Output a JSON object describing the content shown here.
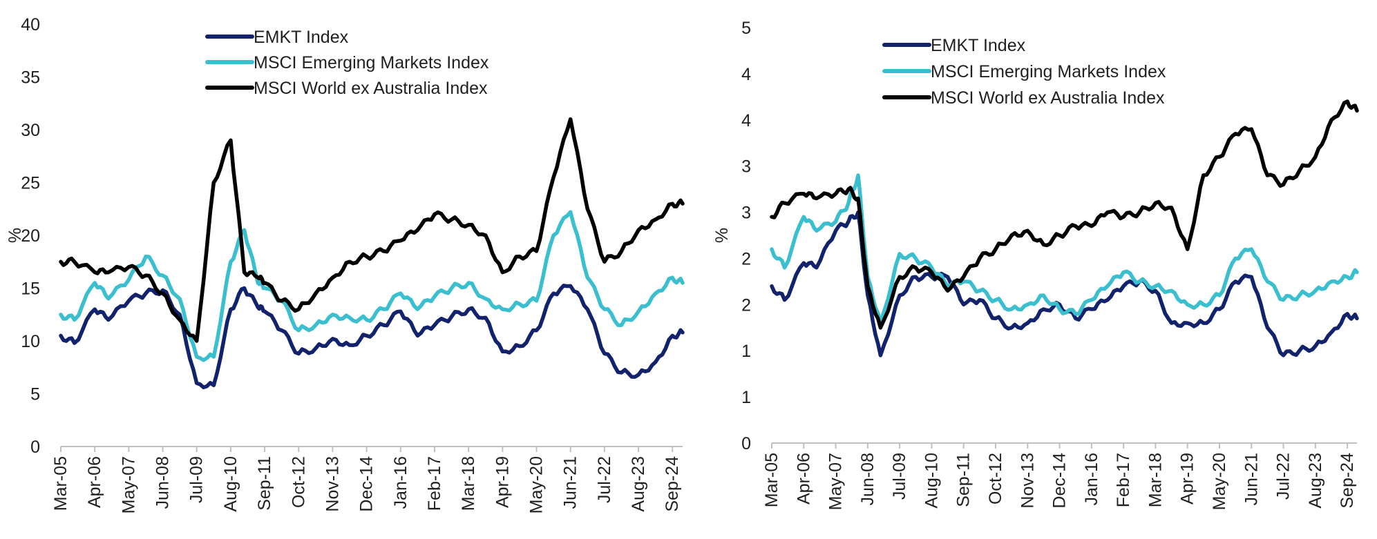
{
  "chart_data": [
    {
      "type": "line",
      "title": "",
      "xlabel": "",
      "ylabel": "%",
      "ylim": [
        0,
        40
      ],
      "yticks": [
        "0",
        "5",
        "10",
        "15",
        "20",
        "25",
        "30",
        "35",
        "40"
      ],
      "categories": [
        "Mar-05",
        "Apr-06",
        "May-07",
        "Jun-08",
        "Jul-09",
        "Aug-10",
        "Sep-11",
        "Oct-12",
        "Nov-13",
        "Dec-14",
        "Jan-16",
        "Feb-17",
        "Mar-18",
        "Apr-19",
        "May-20",
        "Jun-21",
        "Jul-22",
        "Aug-23",
        "Sep-24"
      ],
      "legend": [
        "EMKT Index",
        "MSCI Emerging Markets Index",
        "MSCI World ex Australia Index"
      ],
      "colors": [
        "#12226b",
        "#3bbfcf",
        "#000000"
      ],
      "series": [
        {
          "name": "EMKT Index",
          "x": [
            0,
            0.4,
            1,
            1.4,
            2,
            2.5,
            3,
            3.5,
            4,
            4.5,
            5,
            5.4,
            5.8,
            6,
            6.5,
            7,
            7.5,
            8,
            8.5,
            9,
            9.5,
            10,
            10.5,
            11,
            11.5,
            12,
            12.5,
            13,
            13.5,
            14,
            14.5,
            15,
            15.5,
            16,
            16.5,
            17,
            17.5,
            18,
            18.3
          ],
          "values": [
            10.5,
            9.8,
            13,
            12,
            13.8,
            14.5,
            14.8,
            12.5,
            6,
            5.8,
            13,
            15,
            13.2,
            12.8,
            11,
            8.8,
            9.3,
            10.2,
            9.6,
            10.5,
            11.5,
            12.8,
            10.5,
            11.5,
            12.3,
            13,
            12.2,
            9,
            9.5,
            11,
            14.5,
            15.2,
            13,
            8.8,
            7,
            6.8,
            8,
            10.5,
            10.8
          ]
        },
        {
          "name": "MSCI Emerging Markets Index",
          "x": [
            0,
            0.4,
            1,
            1.4,
            2,
            2.5,
            3,
            3.5,
            4,
            4.5,
            5,
            5.4,
            5.8,
            6,
            6.5,
            7,
            7.5,
            8,
            8.5,
            9,
            9.5,
            10,
            10.5,
            11,
            11.5,
            12,
            12.5,
            13,
            13.5,
            14,
            14.5,
            15,
            15.5,
            16,
            16.5,
            17,
            17.5,
            18,
            18.3
          ],
          "values": [
            12.5,
            12,
            15.5,
            14,
            15.8,
            18,
            16.2,
            14,
            8.5,
            8.5,
            17.5,
            20.5,
            15.5,
            15,
            13.8,
            11,
            11.5,
            12.5,
            12.2,
            12,
            13,
            14.5,
            13,
            14.2,
            15,
            15.5,
            14,
            13,
            13.5,
            13.8,
            20,
            22.2,
            16,
            13,
            11.5,
            12.8,
            14.5,
            16,
            15.5
          ]
        },
        {
          "name": "MSCI World ex Australia Index",
          "x": [
            0,
            0.4,
            1,
            1.4,
            2,
            2.5,
            3,
            3.5,
            4,
            4.5,
            5,
            5.4,
            5.8,
            6,
            6.5,
            7,
            7.5,
            8,
            8.5,
            9,
            9.5,
            10,
            10.5,
            11,
            11.5,
            12,
            12.5,
            13,
            13.5,
            14,
            14.5,
            15,
            15.5,
            16,
            16.5,
            17,
            17.5,
            18,
            18.3
          ],
          "values": [
            17.5,
            17.5,
            16.5,
            16.5,
            17,
            16.2,
            14.5,
            12,
            10,
            25,
            29,
            16.5,
            16,
            15.5,
            13.8,
            13,
            14.5,
            16,
            17.5,
            18,
            18.5,
            19.5,
            20.5,
            22,
            21.5,
            21,
            20,
            16.5,
            18,
            18.5,
            25.5,
            31,
            22.5,
            17.5,
            18.5,
            20.5,
            21.5,
            23,
            23
          ]
        }
      ]
    },
    {
      "type": "line",
      "title": "",
      "xlabel": "",
      "ylabel": "%",
      "ylim": [
        0,
        4.5
      ],
      "yticks": [
        "0",
        "1",
        "1",
        "2",
        "2",
        "3",
        "3",
        "4",
        "4",
        "5"
      ],
      "categories": [
        "Mar-05",
        "Apr-06",
        "May-07",
        "Jun-08",
        "Jul-09",
        "Aug-10",
        "Sep-11",
        "Oct-12",
        "Nov-13",
        "Dec-14",
        "Jan-16",
        "Feb-17",
        "Mar-18",
        "Apr-19",
        "May-20",
        "Jun-21",
        "Jul-22",
        "Aug-23",
        "Sep-24"
      ],
      "legend": [
        "EMKT Index",
        "MSCI Emerging Markets Index",
        "MSCI World ex Australia Index"
      ],
      "colors": [
        "#12226b",
        "#3bbfcf",
        "#000000"
      ],
      "series": [
        {
          "name": "EMKT Index",
          "x": [
            0,
            0.4,
            1,
            1.4,
            2,
            2.4,
            2.7,
            3,
            3.4,
            4,
            4.5,
            5,
            5.5,
            6,
            6.5,
            7,
            7.5,
            8,
            8.5,
            9,
            9.5,
            10,
            10.5,
            11,
            11.5,
            12,
            12.5,
            13,
            13.5,
            14,
            14.5,
            15,
            15.5,
            16,
            16.5,
            17,
            17.5,
            18,
            18.3
          ],
          "values": [
            1.7,
            1.55,
            1.95,
            1.9,
            2.3,
            2.4,
            2.5,
            1.6,
            0.95,
            1.6,
            1.8,
            1.8,
            1.8,
            1.5,
            1.55,
            1.35,
            1.25,
            1.3,
            1.45,
            1.5,
            1.35,
            1.45,
            1.55,
            1.7,
            1.75,
            1.65,
            1.3,
            1.3,
            1.3,
            1.45,
            1.75,
            1.8,
            1.25,
            0.95,
            1.0,
            1.05,
            1.2,
            1.4,
            1.35
          ]
        },
        {
          "name": "MSCI Emerging Markets Index",
          "x": [
            0,
            0.4,
            1,
            1.4,
            2,
            2.4,
            2.7,
            3,
            3.4,
            4,
            4.5,
            5,
            5.5,
            6,
            6.5,
            7,
            7.5,
            8,
            8.5,
            9,
            9.5,
            10,
            10.5,
            11,
            11.5,
            12,
            12.5,
            13,
            13.5,
            14,
            14.5,
            15,
            15.5,
            16,
            16.5,
            17,
            17.5,
            18,
            18.3
          ],
          "values": [
            2.1,
            1.9,
            2.45,
            2.3,
            2.4,
            2.6,
            2.9,
            1.8,
            1.3,
            2.05,
            2.0,
            1.9,
            1.7,
            1.75,
            1.65,
            1.55,
            1.45,
            1.5,
            1.6,
            1.45,
            1.4,
            1.55,
            1.7,
            1.85,
            1.75,
            1.7,
            1.65,
            1.5,
            1.5,
            1.6,
            2.0,
            2.1,
            1.75,
            1.55,
            1.6,
            1.65,
            1.75,
            1.8,
            1.85
          ]
        },
        {
          "name": "MSCI World ex Australia Index",
          "x": [
            0,
            0.4,
            1,
            1.4,
            2,
            2.4,
            2.7,
            3,
            3.4,
            4,
            4.5,
            5,
            5.5,
            6,
            6.5,
            7,
            7.5,
            8,
            8.5,
            9,
            9.5,
            10,
            10.5,
            11,
            11.5,
            12,
            12.5,
            13,
            13.5,
            14,
            14.5,
            15,
            15.5,
            16,
            16.5,
            17,
            17.5,
            18,
            18.3
          ],
          "values": [
            2.45,
            2.6,
            2.7,
            2.65,
            2.7,
            2.75,
            2.65,
            1.7,
            1.25,
            1.8,
            1.9,
            1.85,
            1.65,
            1.8,
            2.0,
            2.1,
            2.25,
            2.3,
            2.15,
            2.25,
            2.35,
            2.35,
            2.5,
            2.45,
            2.5,
            2.6,
            2.55,
            2.1,
            2.9,
            3.1,
            3.35,
            3.4,
            2.9,
            2.8,
            2.95,
            3.1,
            3.5,
            3.7,
            3.6
          ]
        }
      ]
    }
  ]
}
